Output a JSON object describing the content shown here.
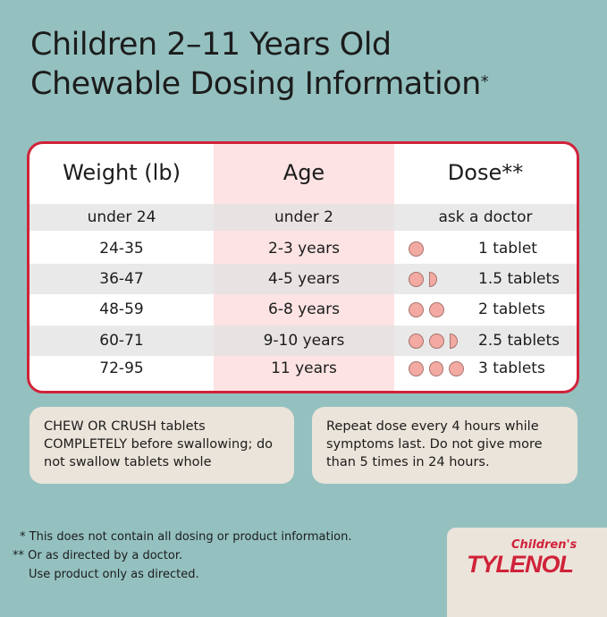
{
  "title": {
    "line1": "Children 2–11 Years Old",
    "line2": "Chewable Dosing Information",
    "mark": "*"
  },
  "table": {
    "headers": [
      "Weight (lb)",
      "Age",
      "Dose**"
    ],
    "rows": [
      {
        "weight": "under 24",
        "age": "under 2",
        "dose": "ask a doctor",
        "tablets": 0
      },
      {
        "weight": "24-35",
        "age": "2-3 years",
        "dose": "1 tablet",
        "tablets": 1
      },
      {
        "weight": "36-47",
        "age": "4-5 years",
        "dose": "1.5 tablets",
        "tablets": 1.5
      },
      {
        "weight": "48-59",
        "age": "6-8 years",
        "dose": "2 tablets",
        "tablets": 2
      },
      {
        "weight": "60-71",
        "age": "9-10 years",
        "dose": "2.5 tablets",
        "tablets": 2.5
      },
      {
        "weight": "72-95",
        "age": "11 years",
        "dose": "3 tablets",
        "tablets": 3
      }
    ]
  },
  "colors": {
    "accent": "#d0223a",
    "tablet": "#f2aaa2",
    "bg": "#94c1c0"
  },
  "boxes": {
    "left": "CHEW OR CRUSH tablets COMPLETELY before swallowing; do not swallow tablets whole",
    "right": "Repeat dose every 4 hours while symptoms last. Do not give more than 5 times in 24 hours."
  },
  "footnotes": [
    "* This does not contain all dosing or product information.",
    "** Or as directed by a doctor.",
    "Use product only as directed."
  ],
  "logo": {
    "small": "Children's",
    "brand": "TYLENOL"
  }
}
